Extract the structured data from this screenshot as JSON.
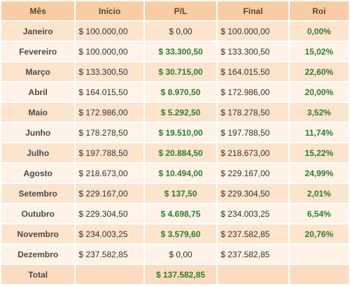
{
  "headers": {
    "month": "Mês",
    "start": "Início",
    "pl": "P/L",
    "final": "Final",
    "roi": "Roi"
  },
  "rows": [
    {
      "month": "Janeiro",
      "start": "$ 100.000,00",
      "pl": "$ 0,00",
      "final": "$ 100.000,00",
      "roi": "0,00%",
      "pl_positive": false
    },
    {
      "month": "Fevereiro",
      "start": "$ 100.000,00",
      "pl": "$ 33.300,50",
      "final": "$ 133.300,50",
      "roi": "15,02%",
      "pl_positive": true
    },
    {
      "month": "Março",
      "start": "$ 133.300,50",
      "pl": "$ 30.715,00",
      "final": "$ 164.015,50",
      "roi": "22,60%",
      "pl_positive": true
    },
    {
      "month": "Abril",
      "start": "$ 164.015,50",
      "pl": "$ 8.970,50",
      "final": "$ 172.986,00",
      "roi": "20,00%",
      "pl_positive": true
    },
    {
      "month": "Maio",
      "start": "$ 172.986,00",
      "pl": "$ 5.292,50",
      "final": "$ 178.278,50",
      "roi": "3,52%",
      "pl_positive": true
    },
    {
      "month": "Junho",
      "start": "$ 178.278,50",
      "pl": "$ 19.510,00",
      "final": "$ 197.788,50",
      "roi": "11,74%",
      "pl_positive": true
    },
    {
      "month": "Julho",
      "start": "$ 197.788,50",
      "pl": "$ 20.884,50",
      "final": "$ 218.673,00",
      "roi": "15,22%",
      "pl_positive": true
    },
    {
      "month": "Agosto",
      "start": "$ 218.673,00",
      "pl": "$ 10.494,00",
      "final": "$ 229.167,00",
      "roi": "24,99%",
      "pl_positive": true
    },
    {
      "month": "Setembro",
      "start": "$ 229.167,00",
      "pl": "$ 137,50",
      "final": "$ 229.304,50",
      "roi": "2,01%",
      "pl_positive": true
    },
    {
      "month": "Outubro",
      "start": "$ 229.304,50",
      "pl": "$ 4.698,75",
      "final": "$ 234.003,25",
      "roi": "6,54%",
      "pl_positive": true
    },
    {
      "month": "Novembro",
      "start": "$ 234.003,25",
      "pl": "$ 3.579,60",
      "final": "$ 237.582,85",
      "roi": "20,76%",
      "pl_positive": true
    },
    {
      "month": "Dezembro",
      "start": "$ 237.582,85",
      "pl": "$ 0,00",
      "final": "$ 237.582,85",
      "roi": "",
      "pl_positive": false
    }
  ],
  "total": {
    "label": "Total",
    "pl": "$ 137.582,85"
  },
  "colors": {
    "header_bg": "#f9cda4",
    "row_even_bg": "#fce4cd",
    "row_odd_bg": "#fef3e6",
    "positive_green": "#2e7d32"
  }
}
